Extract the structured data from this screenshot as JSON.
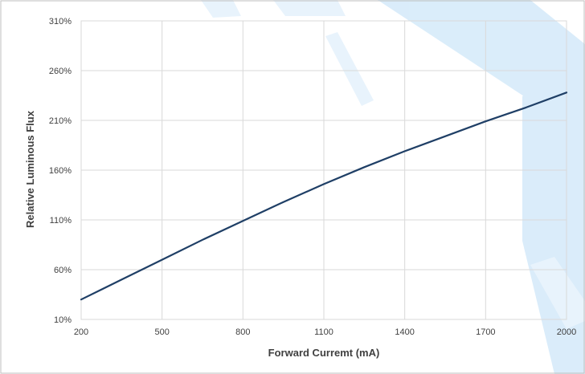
{
  "chart_data": {
    "type": "line",
    "title": "",
    "xlabel": "Forward Curremt (mA)",
    "ylabel": "Relative Luminous Flux",
    "xlim": [
      200,
      2000
    ],
    "ylim": [
      10,
      310
    ],
    "x_ticks": [
      200,
      500,
      800,
      1100,
      1400,
      1700,
      2000
    ],
    "y_ticks": [
      10,
      60,
      110,
      160,
      210,
      260,
      310
    ],
    "x_tick_labels": [
      "200",
      "500",
      "800",
      "1100",
      "1400",
      "1700",
      "2000"
    ],
    "y_tick_labels": [
      "10%",
      "60%",
      "110%",
      "160%",
      "210%",
      "260%",
      "310%"
    ],
    "grid": true,
    "legend": "none",
    "series": [
      {
        "color": "#1f3f66",
        "x": [
          200,
          350,
          500,
          650,
          800,
          950,
          1100,
          1250,
          1400,
          1550,
          1700,
          1850,
          2000
        ],
        "y": [
          30,
          50,
          70,
          90,
          109,
          128,
          146,
          163,
          179,
          194,
          209,
          223,
          238
        ]
      }
    ]
  },
  "colors": {
    "grid": "#d9d9d9",
    "frame": "#bfbfbf",
    "watermark": "#d6ebfa"
  }
}
